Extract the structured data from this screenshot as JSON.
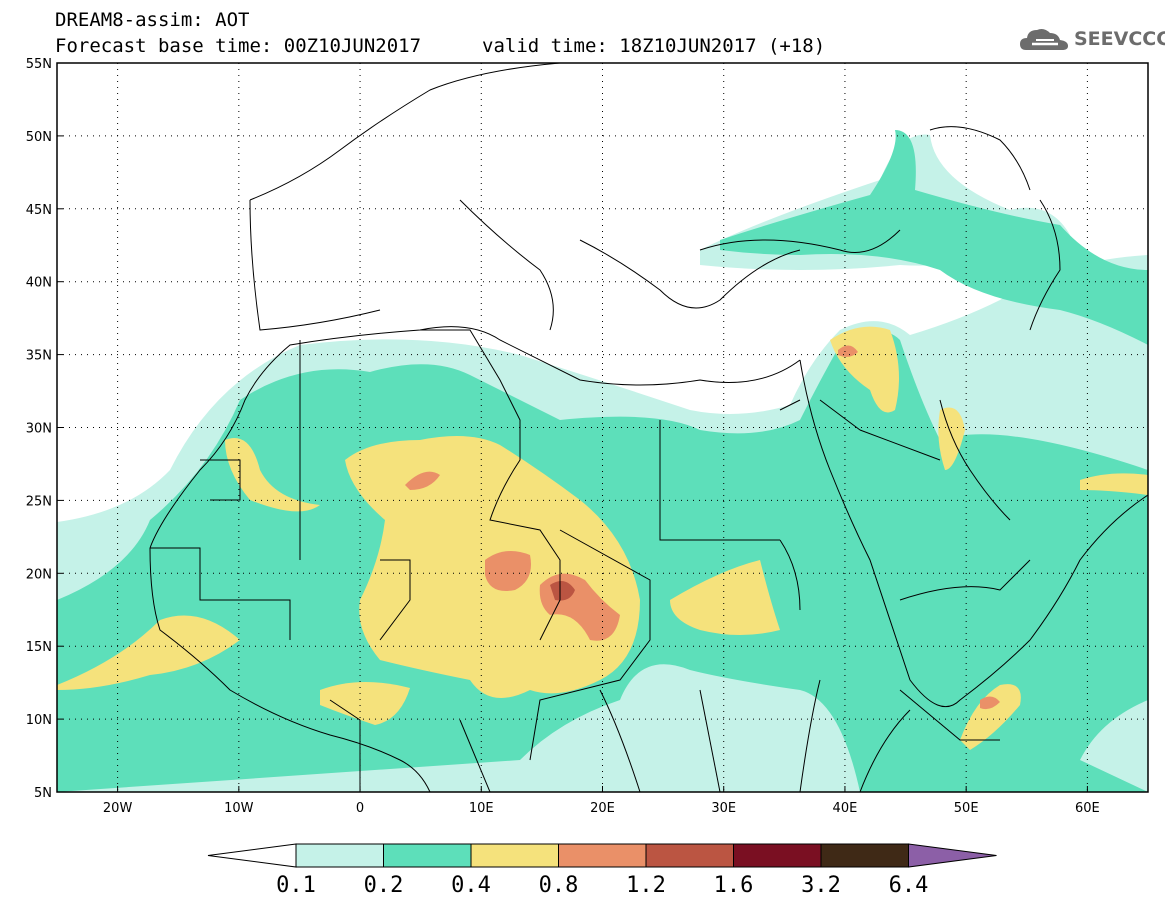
{
  "title": {
    "line1": "DREAM8-assim: AOT",
    "line2": "Forecast base time: 00Z10JUN2017",
    "line3": "valid time: 18Z10JUN2017 (+18)"
  },
  "logo": {
    "text": "SEEVCCC",
    "icon": "cloud-icon"
  },
  "map": {
    "lon_range": [
      -25,
      65
    ],
    "lat_range": [
      5,
      55
    ],
    "x_ticks": [
      "20W",
      "10W",
      "0",
      "10E",
      "20E",
      "30E",
      "40E",
      "50E",
      "60E"
    ],
    "y_ticks": [
      "55N",
      "50N",
      "45N",
      "40N",
      "35N",
      "30N",
      "25N",
      "20N",
      "15N",
      "10N",
      "5N"
    ],
    "grid": "dotted"
  },
  "colorbar": {
    "labels": [
      "0.1",
      "0.2",
      "0.4",
      "0.8",
      "1.2",
      "1.6",
      "3.2",
      "6.4"
    ],
    "colors": [
      "#ffffff",
      "#c5f2e8",
      "#5ddfba",
      "#f5e27c",
      "#ea9068",
      "#bb5542",
      "#7a0f22",
      "#3f2916",
      "#8c5fa7"
    ]
  }
}
